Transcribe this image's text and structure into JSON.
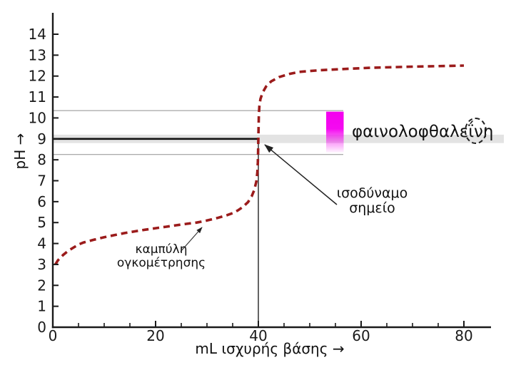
{
  "chart_data": {
    "type": "line",
    "title": "",
    "xlabel": "mL ισχυρής βάσης →",
    "ylabel": "pH →",
    "xlim": [
      0,
      85.5
    ],
    "ylim": [
      0,
      15
    ],
    "grid": false,
    "x_ticks_major": [
      0,
      20,
      40,
      60,
      80
    ],
    "x_ticks_minor": [
      5,
      10,
      15,
      25,
      30,
      35,
      45,
      50,
      55,
      65,
      70,
      75
    ],
    "y_ticks": [
      0,
      1,
      2,
      3,
      4,
      5,
      6,
      7,
      8,
      9,
      10,
      11,
      12,
      13,
      14
    ],
    "series": [
      {
        "name": "καμπύλη ογκομέτρησης",
        "style": "dashed",
        "color": "#9b1b1b",
        "points": [
          [
            0.5,
            3.0
          ],
          [
            1,
            3.2
          ],
          [
            2,
            3.45
          ],
          [
            3,
            3.65
          ],
          [
            4,
            3.8
          ],
          [
            5,
            3.95
          ],
          [
            6,
            4.05
          ],
          [
            8,
            4.18
          ],
          [
            10,
            4.3
          ],
          [
            12,
            4.4
          ],
          [
            14,
            4.5
          ],
          [
            16,
            4.58
          ],
          [
            18,
            4.66
          ],
          [
            20,
            4.73
          ],
          [
            22,
            4.8
          ],
          [
            24,
            4.87
          ],
          [
            26,
            4.94
          ],
          [
            28,
            5.0
          ],
          [
            30,
            5.1
          ],
          [
            32,
            5.22
          ],
          [
            34,
            5.36
          ],
          [
            35,
            5.45
          ],
          [
            36,
            5.58
          ],
          [
            37,
            5.75
          ],
          [
            38,
            5.98
          ],
          [
            38.7,
            6.25
          ],
          [
            39.2,
            6.55
          ],
          [
            39.6,
            6.95
          ],
          [
            39.8,
            7.4
          ],
          [
            39.9,
            7.9
          ],
          [
            39.95,
            8.3
          ],
          [
            40,
            9.0
          ],
          [
            40.05,
            9.7
          ],
          [
            40.1,
            10.15
          ],
          [
            40.2,
            10.55
          ],
          [
            40.4,
            10.9
          ],
          [
            40.8,
            11.2
          ],
          [
            41.5,
            11.5
          ],
          [
            42.5,
            11.75
          ],
          [
            44,
            11.95
          ],
          [
            46,
            12.1
          ],
          [
            48,
            12.2
          ],
          [
            52,
            12.28
          ],
          [
            56,
            12.33
          ],
          [
            62,
            12.4
          ],
          [
            70,
            12.45
          ],
          [
            80,
            12.5
          ]
        ]
      }
    ],
    "annotations": {
      "equivalence_point": {
        "x_ml": 40,
        "ph": 9,
        "label": "ισοδύναμο σημείο"
      },
      "ph9_reference": {
        "ph": 9,
        "band_halfwidth_ph": 0.2
      },
      "indicator_range": {
        "ph_low": 8.25,
        "ph_high": 10.35
      },
      "indicator_bar": {
        "ml_start": 53.2,
        "ml_end": 56.6,
        "ph_bottom": 8.35,
        "ph_top": 10.3,
        "color": "#f400ef"
      },
      "indicator_label": "φαινολοφθαλεΐνη"
    }
  },
  "labels": {
    "phenolphthalein": {
      "before": "φαινολοφθαλε",
      "circled": "ΐν",
      "after": "η"
    },
    "equivalence_line1": "ισοδύναμο",
    "equivalence_line2": "σημείο",
    "curve_line1": "καμπύλη",
    "curve_line2": "ογκομέτρησης",
    "xlabel": "mL ισχυρής βάσης →",
    "ylabel": "pH →"
  },
  "colors": {
    "curve": "#9b1b1b",
    "axis": "#1a1a1a",
    "reference_thin_line": "#8f8f8f",
    "ph9_band": "#e3e3e3",
    "ph9_line": "#111111",
    "indicator_magenta": "#f400ef",
    "text": "#111111",
    "background": "#ffffff"
  }
}
